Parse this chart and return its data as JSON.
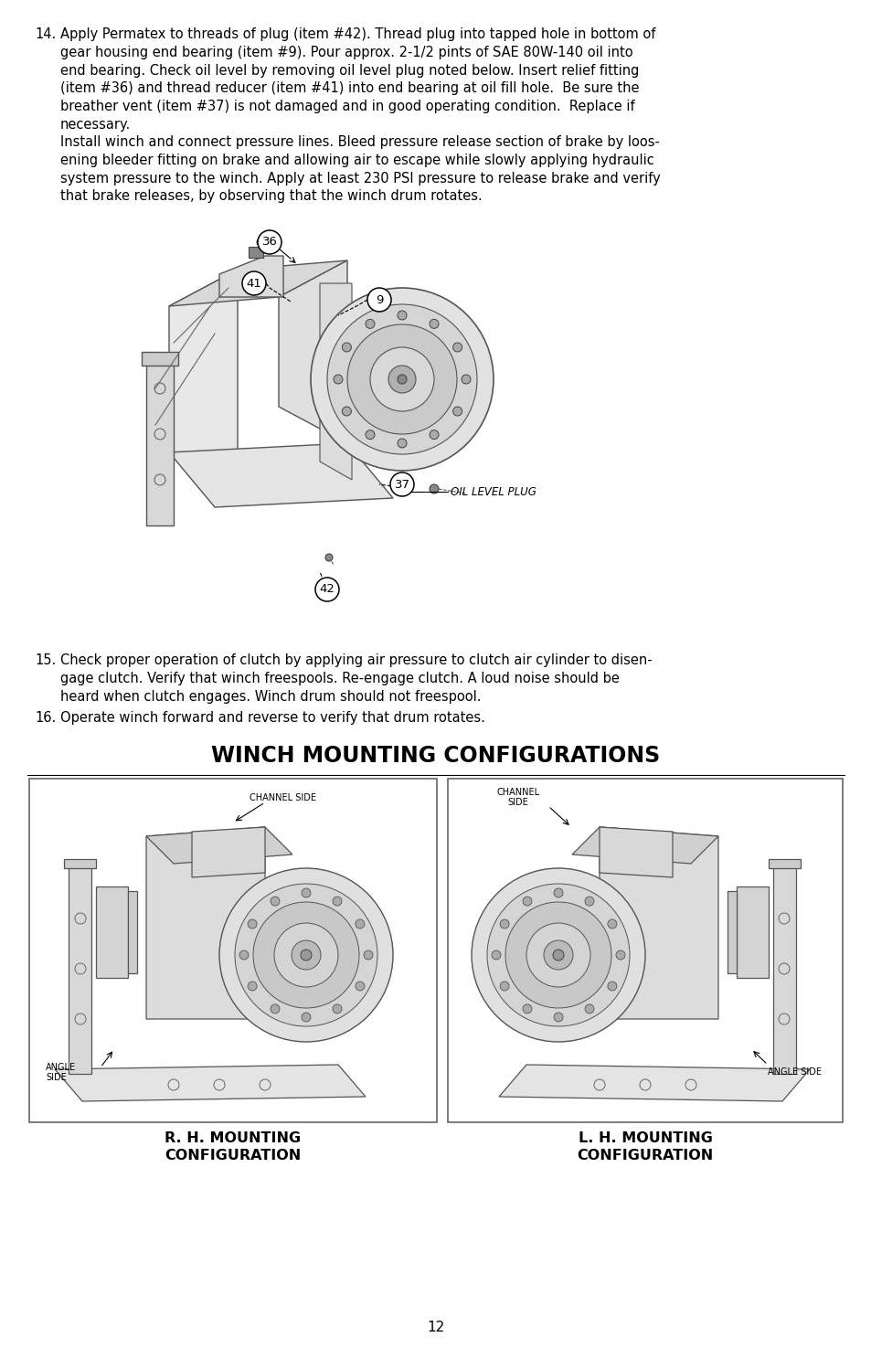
{
  "bg_color": "#ffffff",
  "text_color": "#000000",
  "page_number": "12",
  "item14_label": "14.",
  "item14_para1": "Apply Permatex to threads of plug (item #42). Thread plug into tapped hole in bottom of\ngear housing end bearing (item #9). Pour approx. 2-1/2 pints of SAE 80W-140 oil into\nend bearing. Check oil level by removing oil level plug noted below. Insert relief fitting\n(item #36) and thread reducer (item #41) into end bearing at oil fill hole.  Be sure the\nbreather vent (item #37) is not damaged and in good operating condition.  Replace if\nnecessary.",
  "item14_para2": "Install winch and connect pressure lines. Bleed pressure release section of brake by loos-\nening bleeder fitting on brake and allowing air to escape while slowly applying hydraulic\nsystem pressure to the winch. Apply at least 230 PSI pressure to release brake and verify\nthat brake releases, by observing that the winch drum rotates.",
  "item15_label": "15.",
  "item15_text": "Check proper operation of clutch by applying air pressure to clutch air cylinder to disen-\ngage clutch. Verify that winch freespools. Re-engage clutch. A loud noise should be\nheard when clutch engages. Winch drum should not freespool.",
  "item16_label": "16.",
  "item16_text": "Operate winch forward and reverse to verify that drum rotates.",
  "section_title": "WINCH MOUNTING CONFIGURATIONS",
  "rh_label": "R. H. MOUNTING\nCONFIGURATION",
  "lh_label": "L. H. MOUNTING\nCONFIGURATION",
  "channel_side_rh": "CHANNEL SIDE",
  "channel_side_lh1": "CHANNEL",
  "channel_side_lh2": "SIDE",
  "angle_side_rh1": "ANGLE",
  "angle_side_rh2": "SIDE",
  "angle_side_lh": "ANGLE SIDE",
  "oil_level_plug": "OIL LEVEL PLUG"
}
